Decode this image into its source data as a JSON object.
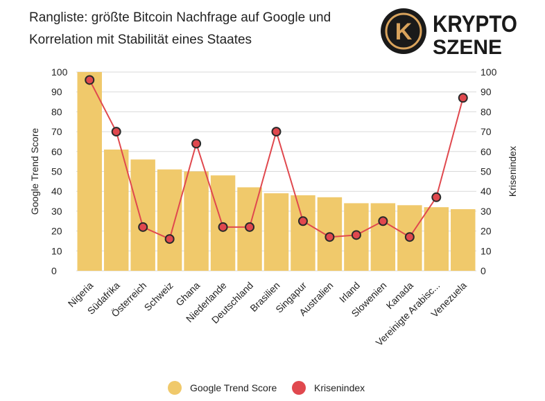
{
  "header": {
    "title_line1": "Rangliste: größte Bitcoin Nachfrage auf Google und",
    "title_line2": "Korrelation mit Stabilität eines Staates"
  },
  "logo": {
    "line1": "KRYPTO",
    "line2": "SZENE",
    "emblem_letter": "K"
  },
  "colors": {
    "bars": "#f0c96b",
    "line": "#e0484e",
    "grid": "#d9d9d9",
    "text": "#222222",
    "logo_dark": "#1a1a1a",
    "logo_gold": "#d9a35c"
  },
  "chart_data": {
    "type": "bar",
    "categories": [
      "Nigeria",
      "Südafrika",
      "Österreich",
      "Schweiz",
      "Ghana",
      "Niederlande",
      "Deutschland",
      "Brasilien",
      "Singapur",
      "Australien",
      "Irland",
      "Slowenien",
      "Kanada",
      "Vereinigte Arabisc...",
      "Venezuela"
    ],
    "series": [
      {
        "name": "Google Trend Score",
        "type": "bar",
        "axis": "left",
        "values": [
          100,
          61,
          56,
          51,
          50,
          48,
          42,
          39,
          38,
          37,
          34,
          34,
          33,
          32,
          31
        ]
      },
      {
        "name": "Krisenindex",
        "type": "line",
        "axis": "right",
        "values": [
          96,
          70,
          22,
          16,
          64,
          22,
          22,
          70,
          25,
          17,
          18,
          25,
          17,
          37,
          87
        ]
      }
    ],
    "ylabel": "Google Trend Score",
    "y2label": "Krisenindex",
    "ylim": [
      0,
      100
    ],
    "y2lim": [
      0,
      100
    ],
    "yticks": [
      "0",
      "10",
      "20",
      "30",
      "40",
      "50",
      "60",
      "70",
      "80",
      "90",
      "100"
    ],
    "grid": true,
    "legend_position": "bottom"
  }
}
